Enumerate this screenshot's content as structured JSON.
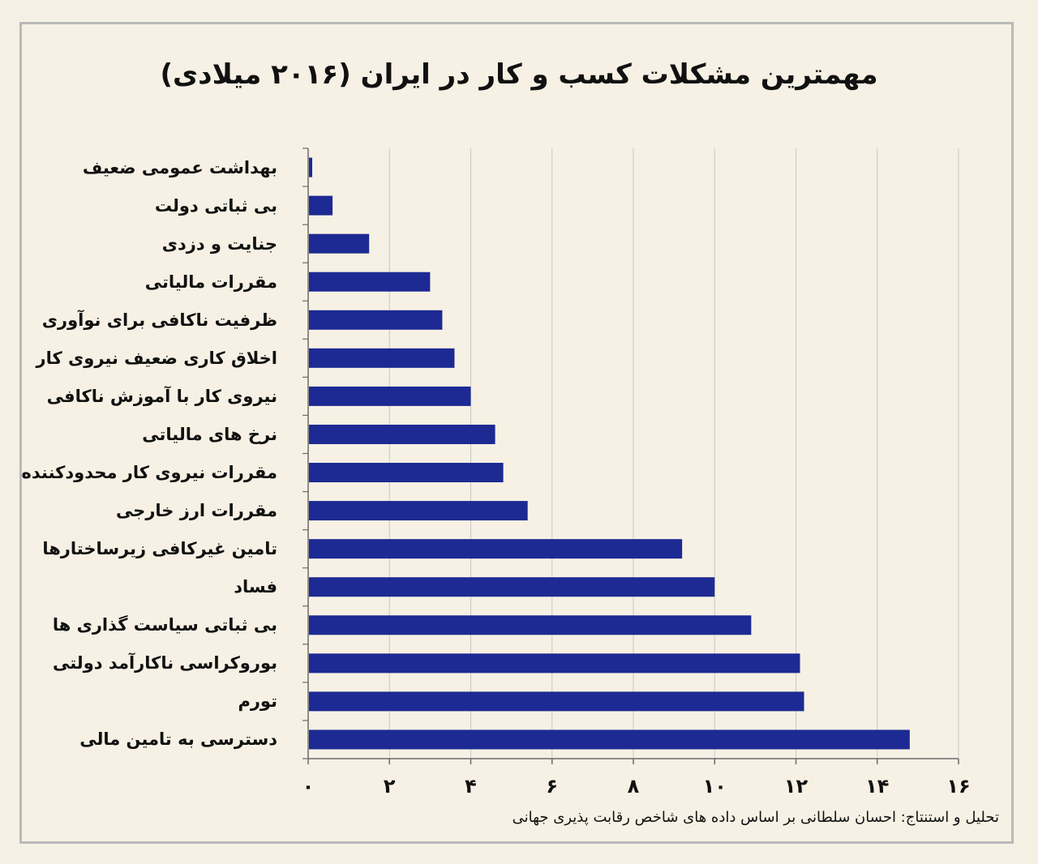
{
  "title": "مهمترین مشکلات کسب و کار در ایران (۲۰۱۶ میلادی)",
  "source": "تحلیل و استنتاج: احسان سلطانی بر اساس داده های شاخص رقابت پذیری جهانی",
  "colors": {
    "bar": "#1d2a93",
    "grid": "#c8c8c8",
    "axis": "#6b6b6b"
  },
  "chart_data": {
    "type": "bar",
    "orientation": "horizontal",
    "categories": [
      "بهداشت عمومی ضعیف",
      "بی ثباتی دولت",
      "جنایت و دزدی",
      "مقررات مالیاتی",
      "ظرفیت ناکافی برای نوآوری",
      "اخلاق کاری ضعیف نیروی کار",
      "نیروی کار با آموزش ناکافی",
      "نرخ های مالیاتی",
      "مقررات نیروی کار محدودکننده",
      "مقررات ارز خارجی",
      "تامین غیرکافی زیرساختارها",
      "فساد",
      "بی ثباتی سیاست گذاری ها",
      "بوروکراسی ناکارآمد دولتی",
      "تورم",
      "دسترسی به تامین مالی"
    ],
    "values": [
      0.1,
      0.6,
      1.5,
      3.0,
      3.3,
      3.6,
      4.0,
      4.6,
      4.8,
      5.4,
      9.2,
      10.0,
      10.9,
      12.1,
      12.2,
      14.8
    ],
    "xlim": [
      0,
      16
    ],
    "ticks": [
      0,
      2,
      4,
      6,
      8,
      10,
      12,
      14,
      16
    ],
    "tick_labels": [
      "۰",
      "۲",
      "۴",
      "۶",
      "۸",
      "۱۰",
      "۱۲",
      "۱۴",
      "۱۶"
    ],
    "grid": true
  }
}
